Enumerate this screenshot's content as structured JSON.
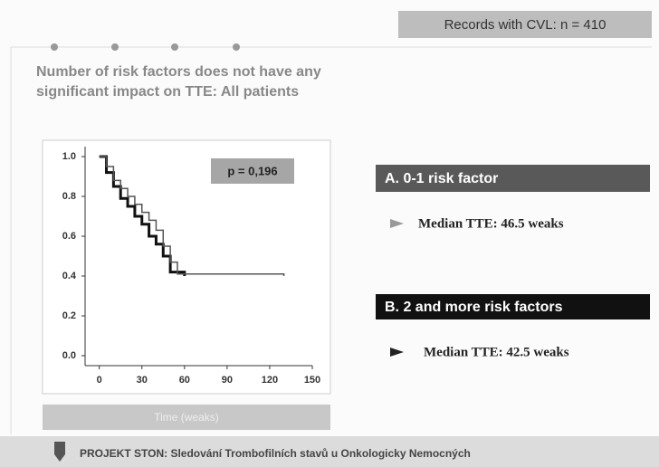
{
  "records_label": "Records with CVL: n = 410",
  "heading": [
    "Number of risk factors does not have any",
    "significant impact on TTE: All patients"
  ],
  "groups": [
    {
      "label": "A. 0-1 risk factor",
      "median": "Median TTE: 46.5 weaks"
    },
    {
      "label": "B. 2 and more risk factors",
      "median": "Median TTE: 42.5 weaks"
    }
  ],
  "footer": "PROJEKT STON: Sledování Trombofilních stavů u Onkologicky Nemocných",
  "chart_data": {
    "type": "step",
    "xlabel": "Time (weaks)",
    "annotation": "p = 0,196",
    "xlim": [
      -10,
      150
    ],
    "xticks": [
      0,
      30,
      60,
      90,
      120,
      150
    ],
    "ylim": [
      -0.05,
      1.05
    ],
    "yticks": [
      {
        "value": 0,
        "label": "0.0"
      },
      0.2,
      0.4,
      0.6,
      0.8,
      {
        "value": 1,
        "label": "1.0"
      }
    ],
    "series": [
      {
        "color": "#111111",
        "x": [
          0,
          5,
          10,
          15,
          20,
          25,
          30,
          35,
          40,
          45,
          50,
          60
        ],
        "values": [
          1.0,
          0.92,
          0.85,
          0.79,
          0.75,
          0.7,
          0.66,
          0.6,
          0.56,
          0.5,
          0.42,
          0.4
        ]
      },
      {
        "color": "#555555",
        "x": [
          0,
          5,
          10,
          15,
          20,
          25,
          30,
          35,
          40,
          45,
          50,
          55,
          130
        ],
        "values": [
          1.0,
          0.95,
          0.88,
          0.84,
          0.8,
          0.76,
          0.72,
          0.68,
          0.63,
          0.55,
          0.47,
          0.41,
          0.4
        ]
      }
    ]
  }
}
